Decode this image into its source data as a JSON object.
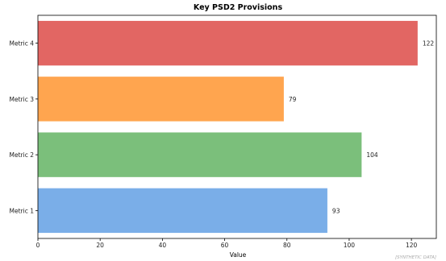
{
  "chart_data": {
    "type": "bar",
    "orientation": "horizontal",
    "title": "Key PSD2 Provisions",
    "xlabel": "Value",
    "ylabel": "",
    "categories": [
      "Metric 1",
      "Metric 2",
      "Metric 3",
      "Metric 4"
    ],
    "values": [
      93,
      104,
      79,
      122
    ],
    "colors": [
      "#7aaee8",
      "#7bbf7b",
      "#ffa54f",
      "#e26663"
    ],
    "xlim": [
      0,
      128
    ],
    "xticks": [
      0,
      20,
      40,
      60,
      80,
      100,
      120
    ],
    "grid": false,
    "legend": "none"
  },
  "watermark": "[SYNTHETIC DATA]"
}
